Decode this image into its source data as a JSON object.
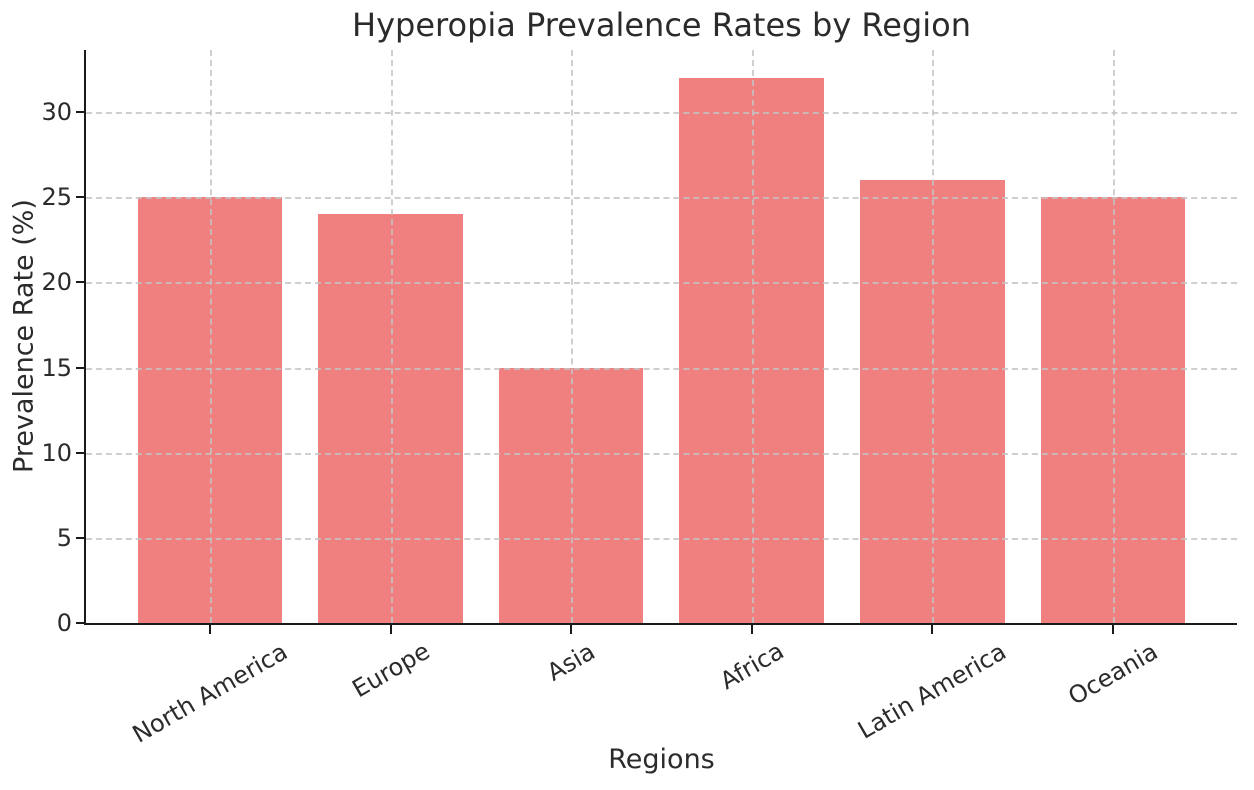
{
  "chart_data": {
    "type": "bar",
    "title": "Hyperopia Prevalence Rates by Region",
    "xlabel": "Regions",
    "ylabel": "Prevalence Rate (%)",
    "categories": [
      "North America",
      "Europe",
      "Asia",
      "Africa",
      "Latin America",
      "Oceania"
    ],
    "values": [
      25,
      24,
      15,
      32,
      26,
      25
    ],
    "yticks": [
      0,
      5,
      10,
      15,
      20,
      25,
      30
    ],
    "ylim": [
      0,
      33.65
    ],
    "xlim": [
      -0.686,
      5.687
    ],
    "bar_width_units": 0.8,
    "xtick_rotation_deg": 30,
    "grid": true,
    "grid_style": "dashed",
    "grid_on_top": true,
    "legend": "none",
    "bar_color": "#F08080",
    "grid_color": "rgba(195,195,195,0.8)",
    "axis_color": "#1A1A1A",
    "text_color": "#2B2B2B",
    "background_color": "#FFFFFF"
  }
}
